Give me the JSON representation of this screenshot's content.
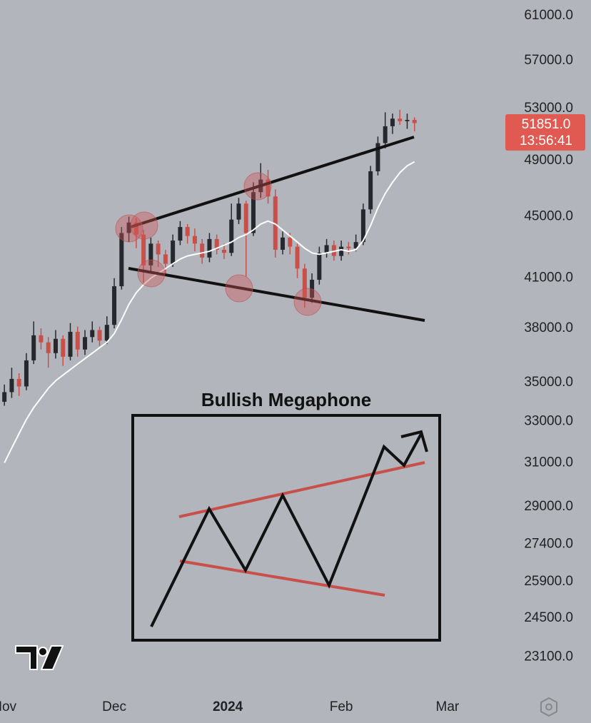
{
  "chart_data": {
    "type": "candlestick",
    "categories": [
      null,
      null,
      null,
      null,
      null,
      null,
      null,
      null,
      null,
      null,
      null,
      null,
      null,
      null,
      null,
      null,
      null,
      null,
      null,
      null,
      null,
      null,
      null,
      null,
      null,
      null,
      null,
      null,
      null,
      null,
      null,
      null,
      null,
      null,
      null,
      null,
      null,
      null,
      null,
      null,
      null,
      null,
      null,
      null,
      null,
      null,
      null,
      null,
      null,
      null,
      null,
      null,
      null,
      null,
      null,
      null,
      null
    ],
    "open": [
      34000,
      34500,
      35200,
      34800,
      36200,
      37600,
      37200,
      36600,
      37400,
      36400,
      37800,
      36800,
      37500,
      37900,
      37300,
      38200,
      40500,
      43900,
      44600,
      43800,
      41800,
      43200,
      42500,
      41900,
      43400,
      44300,
      43700,
      43200,
      42300,
      43500,
      42800,
      42600,
      44800,
      45900,
      43900,
      46700,
      47600,
      46400,
      42800,
      43600,
      43000,
      41600,
      39800,
      40900,
      42600,
      43100,
      42400,
      43000,
      42900,
      43300,
      45500,
      48200,
      50300,
      51600,
      52200,
      52000,
      52100
    ],
    "high": [
      34900,
      35800,
      35500,
      36600,
      38400,
      38000,
      37500,
      37900,
      37600,
      38300,
      38100,
      37900,
      38400,
      38100,
      38700,
      41000,
      44300,
      45000,
      44900,
      44100,
      43600,
      43400,
      42800,
      43800,
      44700,
      44500,
      44200,
      43500,
      43900,
      43800,
      43200,
      45900,
      46300,
      46100,
      47400,
      48800,
      48300,
      46900,
      44000,
      43900,
      43200,
      41900,
      41300,
      43000,
      43500,
      43400,
      43400,
      43300,
      43800,
      45900,
      48600,
      50800,
      52700,
      52600,
      52900,
      52600,
      52300
    ],
    "low": [
      33800,
      34200,
      34300,
      34600,
      36000,
      36800,
      35800,
      36300,
      35900,
      36200,
      36400,
      36500,
      37200,
      37000,
      37100,
      38000,
      40300,
      43300,
      42900,
      40700,
      41300,
      41700,
      41200,
      41700,
      43100,
      43200,
      42700,
      41900,
      42000,
      42500,
      42200,
      42400,
      44500,
      41100,
      43700,
      46300,
      45900,
      42300,
      42500,
      42500,
      41000,
      39200,
      39500,
      40600,
      42300,
      42100,
      42100,
      42500,
      42700,
      43100,
      45200,
      47900,
      49900,
      51000,
      51700,
      51400,
      51200
    ],
    "close": [
      34500,
      35200,
      34800,
      36200,
      37600,
      37200,
      36600,
      37400,
      36400,
      37800,
      36800,
      37500,
      37900,
      37300,
      38200,
      40500,
      43900,
      44600,
      43800,
      41800,
      43200,
      42500,
      41900,
      43400,
      44300,
      43700,
      43200,
      42300,
      43500,
      42800,
      42600,
      44800,
      45900,
      43900,
      46700,
      47600,
      46400,
      42800,
      43600,
      43000,
      41600,
      39800,
      40900,
      42600,
      43100,
      42400,
      43000,
      42900,
      43300,
      45500,
      48200,
      50300,
      51600,
      52200,
      52000,
      52100,
      51851
    ],
    "moving_average": [
      31000,
      31700,
      32400,
      33100,
      33700,
      34200,
      34700,
      35100,
      35400,
      35700,
      36000,
      36300,
      36600,
      36900,
      37200,
      37700,
      38500,
      39400,
      40100,
      40600,
      41000,
      41300,
      41600,
      41900,
      42200,
      42400,
      42500,
      42600,
      42700,
      42900,
      43100,
      43300,
      43600,
      43800,
      44100,
      44500,
      44700,
      44500,
      44100,
      43700,
      43300,
      42900,
      42600,
      42500,
      42600,
      42700,
      42800,
      42700,
      42800,
      43400,
      44400,
      45600,
      46600,
      47400,
      48100,
      48600,
      48900
    ],
    "up_color": "#26282e",
    "down_color": "#c8504b",
    "ma_color": "#ffffff",
    "log_scale": true,
    "ylim": [
      21900,
      62470
    ],
    "yticks": [
      {
        "value": 61000,
        "label": "61000.0"
      },
      {
        "value": 57000,
        "label": "57000.0"
      },
      {
        "value": 53000,
        "label": "53000.0"
      },
      {
        "value": 49000,
        "label": "49000.0"
      },
      {
        "value": 45000,
        "label": "45000.0"
      },
      {
        "value": 41000,
        "label": "41000.0"
      },
      {
        "value": 38000,
        "label": "38000.0"
      },
      {
        "value": 35000,
        "label": "35000.0"
      },
      {
        "value": 33000,
        "label": "33000.0"
      },
      {
        "value": 31000,
        "label": "31000.0"
      },
      {
        "value": 29000,
        "label": "29000.0"
      },
      {
        "value": 27400,
        "label": "27400.0"
      },
      {
        "value": 25900,
        "label": "25900.0"
      },
      {
        "value": 24500,
        "label": "24500.0"
      },
      {
        "value": 23100,
        "label": "23100.0"
      }
    ],
    "xlim": [
      -0.6,
      80.1
    ],
    "xticks": [
      {
        "value": 0,
        "label": "Nov"
      },
      {
        "value": 15,
        "label": "Dec"
      },
      {
        "value": 30.5,
        "label": "2024"
      },
      {
        "value": 46,
        "label": "Feb"
      },
      {
        "value": 60.5,
        "label": "Mar"
      }
    ],
    "price_tag": "51851.0",
    "countdown": "13:56:41",
    "inset_title": "Bullish Megaphone"
  }
}
